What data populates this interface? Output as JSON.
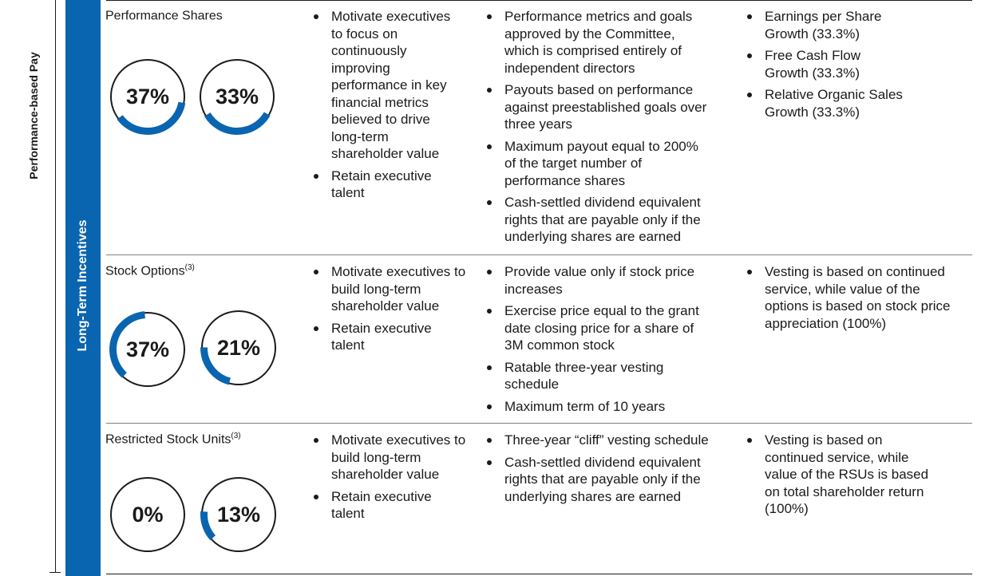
{
  "side_label": "Performance-based Pay",
  "band_label": "Long-Term Incentives",
  "colors": {
    "accent": "#0a65b0",
    "ring": "#1a1a1a",
    "text": "#1a1a1a"
  },
  "rows": [
    {
      "title": "Performance Shares",
      "footnote": "",
      "donuts": [
        {
          "label": "37%",
          "percent": 37
        },
        {
          "label": "33%",
          "percent": 33
        }
      ],
      "purpose": [
        "Motivate executives to focus on continuously improving performance in key financial metrics believed to drive long-term shareholder value",
        "Retain executive talent"
      ],
      "features": [
        "Performance metrics and goals approved by the Committee, which is comprised entirely of independent directors",
        "Payouts based on performance against preestablished goals over three years",
        "Maximum payout equal to 200% of the target number of performance shares",
        "Cash-settled dividend equivalent rights that are payable only if the underlying shares are earned"
      ],
      "metrics": [
        "Earnings per Share Growth (33.3%)",
        "Free Cash Flow Growth (33.3%)",
        "Relative Organic Sales Growth (33.3%)"
      ]
    },
    {
      "title": "Stock Options",
      "footnote": "(3)",
      "donuts": [
        {
          "label": "37%",
          "percent": 37
        },
        {
          "label": "21%",
          "percent": 21
        }
      ],
      "purpose": [
        "Motivate executives to build long-term shareholder value",
        "Retain executive talent"
      ],
      "features": [
        "Provide value only if stock price increases",
        "Exercise price equal to the grant date closing price for a share of 3M common stock",
        "Ratable three-year vesting schedule",
        "Maximum term of 10 years"
      ],
      "metrics": [
        "Vesting is based on continued service, while value of the options is based on stock price appreciation (100%)"
      ]
    },
    {
      "title": "Restricted Stock Units",
      "footnote": "(3)",
      "donuts": [
        {
          "label": "0%",
          "percent": 0
        },
        {
          "label": "13%",
          "percent": 13
        }
      ],
      "purpose": [
        "Motivate executives to build long-term shareholder value",
        "Retain executive talent"
      ],
      "features": [
        "Three-year “cliff” vesting schedule",
        "Cash-settled dividend equivalent rights that are payable only if the underlying shares are earned"
      ],
      "metrics": [
        "Vesting is based on continued service, while value of the RSUs is based on total shareholder return (100%)"
      ]
    }
  ]
}
